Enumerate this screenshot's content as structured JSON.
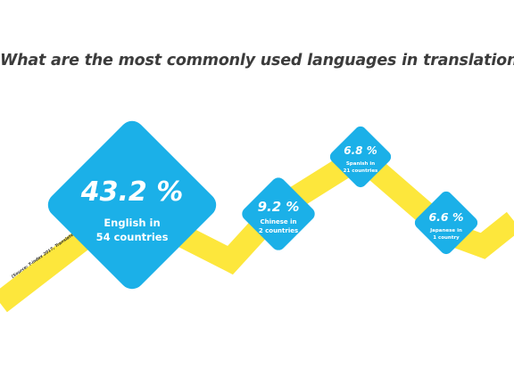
{
  "title": "What are the most commonly used languages in translation?",
  "source": "(Source: T-index 2017, Translated.net)",
  "colors": {
    "diamond": "#1bb0e8",
    "ribbon": "#fde73c",
    "title": "#3c3c3c"
  },
  "chart_data": {
    "type": "bar",
    "title": "What are the most commonly used languages in translation?",
    "unit": "%",
    "categories": [
      "English",
      "Chinese",
      "Spanish",
      "Japanese"
    ],
    "values": [
      43.2,
      9.2,
      6.8,
      6.6
    ],
    "items": [
      {
        "value_label": "43.2 %",
        "line1": "English in",
        "line2": "54 countries"
      },
      {
        "value_label": "9.2 %",
        "line1": "Chinese in",
        "line2": "2 countries"
      },
      {
        "value_label": "6.8 %",
        "line1": "Spanish in",
        "line2": "21 countries"
      },
      {
        "value_label": "6.6 %",
        "line1": "Japanese in",
        "line2": "1 country"
      }
    ]
  }
}
